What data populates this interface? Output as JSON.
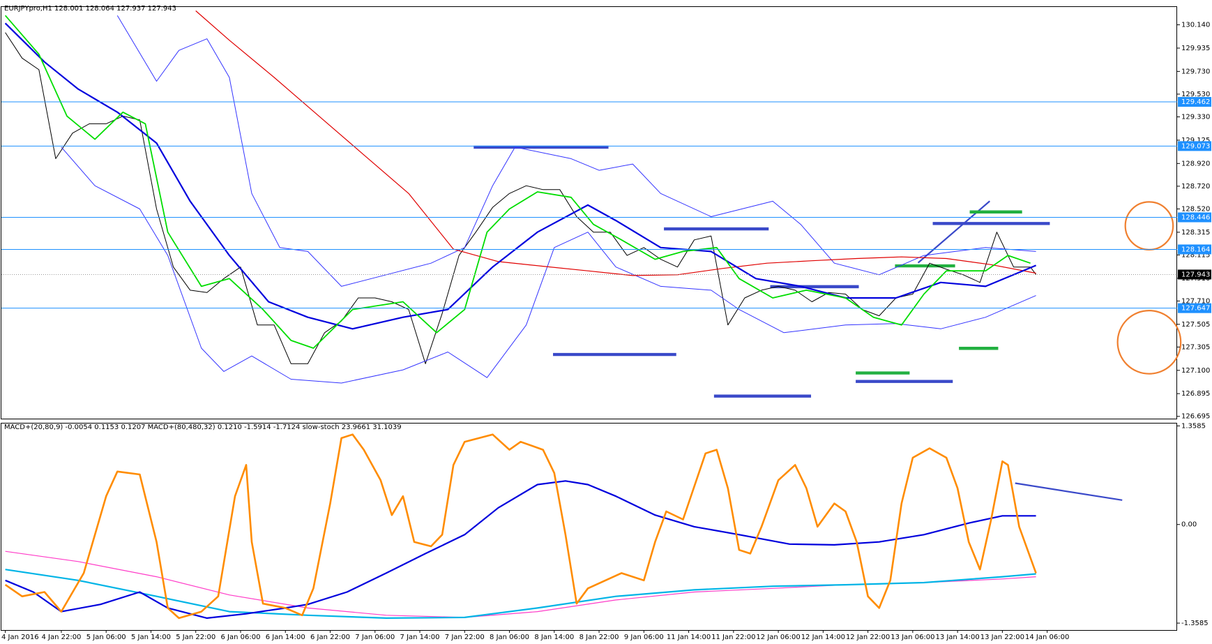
{
  "chart_data": [
    {
      "type": "line",
      "title": "EURJPYpro,H1  128.001 128.064 127.937 127.943",
      "xlim": [
        -0.7,
        209.2
      ],
      "ylim": [
        126.675,
        130.303
      ],
      "yticks": [
        {
          "value": 130.14,
          "label": "130.140"
        },
        129.935,
        {
          "value": 129.73,
          "label": "129.730"
        },
        {
          "value": 129.53,
          "label": "129.530"
        },
        {
          "value": 129.33,
          "label": "129.330"
        },
        129.125,
        {
          "value": 128.92,
          "label": "128.920"
        },
        {
          "value": 128.72,
          "label": "128.720"
        },
        {
          "value": 128.52,
          "label": "128.520"
        },
        128.315,
        128.115,
        {
          "value": 127.91,
          "label": "127.910"
        },
        {
          "value": 127.71,
          "label": "127.710"
        },
        127.505,
        127.305,
        {
          "value": 127.1,
          "label": "127.100"
        },
        126.895,
        126.695
      ],
      "levels": [
        129.462,
        129.073,
        128.446,
        128.164,
        127.647
      ],
      "level_color": "#1e90ff",
      "last": 127.943,
      "series": [
        {
          "color": "#000000",
          "x": [
            0,
            3,
            6,
            9,
            12,
            15,
            18,
            21,
            24,
            27,
            30,
            33,
            36,
            39,
            42,
            45,
            48,
            51,
            54,
            57,
            60,
            63,
            66,
            69,
            72,
            75,
            78,
            81,
            84,
            87,
            90,
            93,
            96,
            99,
            102,
            105,
            108,
            111,
            114,
            117,
            120,
            123,
            126,
            129,
            132,
            135,
            138,
            141,
            144,
            147,
            150,
            153,
            156,
            159,
            162,
            165,
            168,
            171,
            174,
            177,
            180,
            183,
            184
          ],
          "values": [
            130.072,
            129.847,
            129.745,
            128.962,
            129.187,
            129.269,
            129.269,
            129.337,
            129.303,
            128.52,
            128.009,
            127.805,
            127.785,
            127.907,
            128.009,
            127.499,
            127.499,
            127.158,
            127.158,
            127.431,
            127.533,
            127.737,
            127.737,
            127.703,
            127.635,
            127.158,
            127.601,
            128.111,
            128.316,
            128.533,
            128.656,
            128.724,
            128.69,
            128.69,
            128.452,
            128.316,
            128.316,
            128.111,
            128.18,
            128.077,
            128.009,
            128.248,
            128.282,
            127.499,
            127.737,
            127.805,
            127.839,
            127.805,
            127.703,
            127.785,
            127.771,
            127.635,
            127.58,
            127.737,
            127.771,
            128.043,
            127.989,
            127.941,
            127.873,
            128.316,
            128.009,
            128.009,
            127.943
          ]
        },
        {
          "color": "#3333ff",
          "x": [
            20,
            27,
            31,
            36,
            40,
            44,
            49,
            54,
            60,
            68,
            76,
            82,
            87,
            91,
            101,
            106,
            112,
            117,
            126,
            137,
            142,
            148,
            156,
            164,
            175,
            184
          ],
          "values": [
            130.222,
            129.643,
            129.915,
            130.017,
            129.677,
            128.656,
            128.18,
            128.146,
            127.839,
            127.941,
            128.043,
            128.18,
            128.724,
            129.064,
            128.962,
            128.86,
            128.915,
            128.656,
            128.452,
            128.588,
            128.384,
            128.043,
            127.941,
            128.111,
            128.18,
            128.146
          ]
        },
        {
          "color": "#3333ff",
          "x": [
            10,
            16,
            24,
            29,
            35,
            39,
            44,
            51,
            60,
            71,
            79,
            86,
            93,
            98,
            104,
            109,
            117,
            126,
            131,
            139,
            150,
            159,
            167,
            175,
            184
          ],
          "values": [
            129.064,
            128.724,
            128.52,
            128.111,
            127.295,
            127.09,
            127.226,
            127.022,
            126.988,
            127.104,
            127.261,
            127.036,
            127.499,
            128.18,
            128.316,
            128.009,
            127.839,
            127.805,
            127.635,
            127.431,
            127.499,
            127.512,
            127.465,
            127.567,
            127.758
          ]
        },
        {
          "color": "#e00000",
          "x": [
            34,
            40,
            48,
            56,
            64,
            72,
            80,
            88,
            96,
            104,
            112,
            120,
            128,
            136,
            144,
            152,
            160,
            168,
            176,
            184
          ],
          "values": [
            130.263,
            130.004,
            129.677,
            129.337,
            128.996,
            128.656,
            128.166,
            128.057,
            128.016,
            127.975,
            127.934,
            127.941,
            127.996,
            128.043,
            128.064,
            128.084,
            128.098,
            128.084,
            128.03,
            127.955
          ]
        },
        {
          "color": "#0000dd",
          "x": [
            0,
            7,
            13,
            20,
            27,
            33,
            40,
            47,
            54,
            62,
            71,
            79,
            87,
            95,
            104,
            109,
            117,
            126,
            134,
            142,
            150,
            159,
            167,
            175,
            184
          ],
          "values": [
            130.154,
            129.813,
            129.575,
            129.371,
            129.099,
            128.588,
            128.111,
            127.703,
            127.567,
            127.465,
            127.567,
            127.635,
            128.009,
            128.316,
            128.554,
            128.418,
            128.18,
            128.146,
            127.907,
            127.839,
            127.737,
            127.737,
            127.873,
            127.839,
            128.023
          ]
        },
        {
          "color": "#00dd00",
          "x": [
            0,
            6,
            11,
            16,
            21,
            25,
            29,
            35,
            40,
            46,
            51,
            55,
            62,
            71,
            77,
            82,
            86,
            90,
            95,
            101,
            105,
            110,
            116,
            121,
            127,
            131,
            137,
            143,
            150,
            155,
            160,
            164,
            168,
            175,
            179,
            183
          ],
          "values": [
            130.222,
            129.881,
            129.337,
            129.133,
            129.371,
            129.269,
            128.316,
            127.839,
            127.907,
            127.635,
            127.363,
            127.295,
            127.635,
            127.703,
            127.431,
            127.635,
            128.316,
            128.52,
            128.67,
            128.622,
            128.384,
            128.248,
            128.077,
            128.146,
            128.18,
            127.907,
            127.737,
            127.805,
            127.737,
            127.567,
            127.499,
            127.771,
            127.975,
            127.975,
            128.111,
            128.043
          ]
        }
      ]
    },
    {
      "type": "line",
      "title": "MACD+(20,80,9) -0.0054 0.1153 0.1207  MACD+(80,480,32) 0.1210 -1.5914 -1.7124  slow-stoch 23.9661 31.1039",
      "xlim": [
        -0.7,
        209.2
      ],
      "ylim": [
        -1.454,
        1.401
      ],
      "yticks": [
        1.3585,
        {
          "value": 0,
          "label": "0.00"
        },
        -1.3585
      ],
      "xticks": [
        {
          "value": 0,
          "label": "4 Jan 2016"
        },
        {
          "value": 10,
          "label": "4 Jan 22:00"
        },
        {
          "value": 18,
          "label": "5 Jan 06:00"
        },
        {
          "value": 26,
          "label": "5 Jan 14:00"
        },
        {
          "value": 34,
          "label": "5 Jan 22:00"
        },
        {
          "value": 42,
          "label": "6 Jan 06:00"
        },
        {
          "value": 50,
          "label": "6 Jan 14:00"
        },
        {
          "value": 58,
          "label": "6 Jan 22:00"
        },
        {
          "value": 66,
          "label": "7 Jan 06:00"
        },
        {
          "value": 74,
          "label": "7 Jan 14:00"
        },
        {
          "value": 82,
          "label": "7 Jan 22:00"
        },
        {
          "value": 90,
          "label": "8 Jan 06:00"
        },
        {
          "value": 98,
          "label": "8 Jan 14:00"
        },
        {
          "value": 106,
          "label": "8 Jan 22:00"
        },
        {
          "value": 114,
          "label": "9 Jan 06:00"
        },
        {
          "value": 122,
          "label": "11 Jan 14:00"
        },
        {
          "value": 130,
          "label": "11 Jan 22:00"
        },
        {
          "value": 138,
          "label": "12 Jan 06:00"
        },
        {
          "value": 146,
          "label": "12 Jan 14:00"
        },
        {
          "value": 154,
          "label": "12 Jan 22:00"
        },
        {
          "value": 162,
          "label": "13 Jan 06:00"
        },
        {
          "value": 170,
          "label": "13 Jan 14:00"
        },
        {
          "value": 178,
          "label": "13 Jan 22:00"
        },
        {
          "value": 186,
          "label": "14 Jan 06:00"
        }
      ],
      "series": [
        {
          "color": "#ff3cc8",
          "x": [
            0,
            13,
            27,
            40,
            54,
            68,
            82,
            95,
            109,
            123,
            137,
            150,
            164,
            178,
            184
          ],
          "values": [
            -0.37,
            -0.51,
            -0.72,
            -0.97,
            -1.15,
            -1.25,
            -1.28,
            -1.2,
            -1.04,
            -0.93,
            -0.88,
            -0.83,
            -0.8,
            -0.75,
            -0.72
          ]
        },
        {
          "color": "#00b4e6",
          "x": [
            0,
            13,
            27,
            40,
            54,
            68,
            82,
            95,
            109,
            123,
            137,
            150,
            164,
            178,
            184
          ],
          "values": [
            -0.62,
            -0.77,
            -0.99,
            -1.2,
            -1.25,
            -1.29,
            -1.28,
            -1.15,
            -0.99,
            -0.9,
            -0.85,
            -0.83,
            -0.8,
            -0.72,
            -0.68
          ]
        },
        {
          "color": "#0000dd",
          "x": [
            0,
            5,
            10,
            17,
            24,
            29,
            36,
            43,
            50,
            54,
            61,
            68,
            75,
            82,
            88,
            95,
            100,
            104,
            109,
            116,
            123,
            131,
            140,
            148,
            156,
            164,
            172,
            178,
            184
          ],
          "values": [
            -0.77,
            -0.93,
            -1.2,
            -1.1,
            -0.93,
            -1.15,
            -1.29,
            -1.23,
            -1.15,
            -1.1,
            -0.93,
            -0.67,
            -0.4,
            -0.14,
            0.23,
            0.55,
            0.6,
            0.55,
            0.39,
            0.13,
            -0.03,
            -0.14,
            -0.27,
            -0.28,
            -0.24,
            -0.14,
            0.02,
            0.12,
            0.12
          ]
        },
        {
          "color": "#ff8c00",
          "x": [
            0,
            3,
            7,
            10,
            14,
            18,
            20,
            24,
            27,
            29,
            31,
            35,
            38,
            41,
            43,
            44,
            46,
            50,
            53,
            55,
            58,
            60,
            62,
            64,
            67,
            69,
            71,
            73,
            76,
            78,
            80,
            82,
            87,
            90,
            92,
            96,
            98,
            100,
            102,
            104,
            110,
            114,
            116,
            118,
            121,
            125,
            127,
            129,
            131,
            133,
            135,
            138,
            141,
            143,
            145,
            148,
            150,
            152,
            154,
            156,
            158,
            160,
            162,
            165,
            168,
            170,
            172,
            174,
            176,
            178,
            179,
            181,
            184
          ],
          "values": [
            -0.83,
            -0.99,
            -0.93,
            -1.2,
            -0.67,
            0.39,
            0.73,
            0.69,
            -0.24,
            -1.15,
            -1.29,
            -1.2,
            -0.99,
            0.39,
            0.82,
            -0.24,
            -1.09,
            -1.15,
            -1.25,
            -0.88,
            0.29,
            1.19,
            1.24,
            1.03,
            0.61,
            0.13,
            0.39,
            -0.24,
            -0.3,
            -0.14,
            0.82,
            1.14,
            1.24,
            1.03,
            1.14,
            1.03,
            0.71,
            -0.14,
            -1.09,
            -0.88,
            -0.67,
            -0.77,
            -0.24,
            0.18,
            0.07,
            0.98,
            1.03,
            0.5,
            -0.35,
            -0.4,
            -0.03,
            0.61,
            0.82,
            0.5,
            -0.03,
            0.29,
            0.18,
            -0.24,
            -0.99,
            -1.15,
            -0.77,
            0.29,
            0.92,
            1.05,
            0.92,
            0.5,
            -0.24,
            -0.62,
            0.07,
            0.87,
            0.82,
            -0.03,
            -0.67
          ]
        }
      ]
    }
  ]
}
